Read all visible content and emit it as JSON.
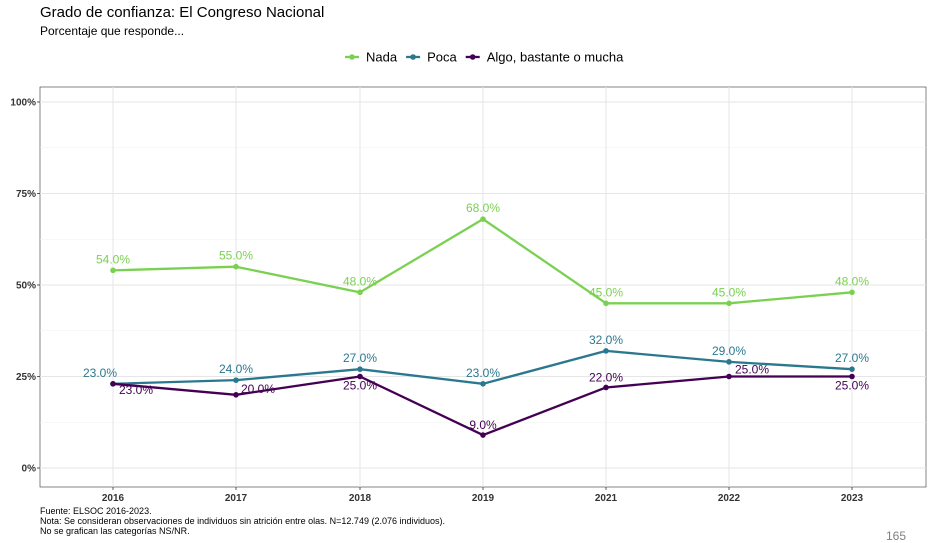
{
  "title": "Grado de confianza: El Congreso Nacional",
  "subtitle": "Porcentaje que responde...",
  "page_number": "165",
  "caption": {
    "line1": "Fuente: ELSOC 2016-2023.",
    "line2": "Nota: Se consideran observaciones de individuos sin atrición entre olas. N=12.749 (2.076 individuos).",
    "line3": "No se grafican las categorías NS/NR."
  },
  "chart_data": {
    "type": "line",
    "title": "Grado de confianza: El Congreso Nacional",
    "subtitle": "Porcentaje que responde...",
    "xlabel": "",
    "ylabel": "",
    "categories": [
      "2016",
      "2017",
      "2018",
      "2019",
      "2021",
      "2022",
      "2023"
    ],
    "ylim": [
      0,
      100
    ],
    "yticks": [
      0,
      25,
      50,
      75,
      100
    ],
    "ytick_labels": [
      "0%",
      "25%",
      "50%",
      "75%",
      "100%"
    ],
    "grid": true,
    "legend_position": "top",
    "series": [
      {
        "name": "Nada",
        "color": "#7ad151",
        "values": [
          54,
          55,
          48,
          68,
          45,
          45,
          48
        ],
        "labels": [
          "54.0%",
          "55.0%",
          "48.0%",
          "68.0%",
          "45.0%",
          "45.0%",
          "48.0%"
        ]
      },
      {
        "name": "Poca",
        "color": "#2a788e",
        "values": [
          23,
          24,
          27,
          23,
          32,
          29,
          27
        ],
        "labels": [
          "23.0%",
          "24.0%",
          "27.0%",
          "23.0%",
          "32.0%",
          "29.0%",
          "27.0%"
        ]
      },
      {
        "name": "Algo, bastante o mucha",
        "color": "#440154",
        "values": [
          23,
          20,
          25,
          9,
          22,
          25,
          25
        ],
        "labels": [
          "23.0%",
          "20.0%",
          "25.0%",
          "9.0%",
          "22.0%",
          "25.0%",
          "25.0%"
        ]
      }
    ]
  }
}
